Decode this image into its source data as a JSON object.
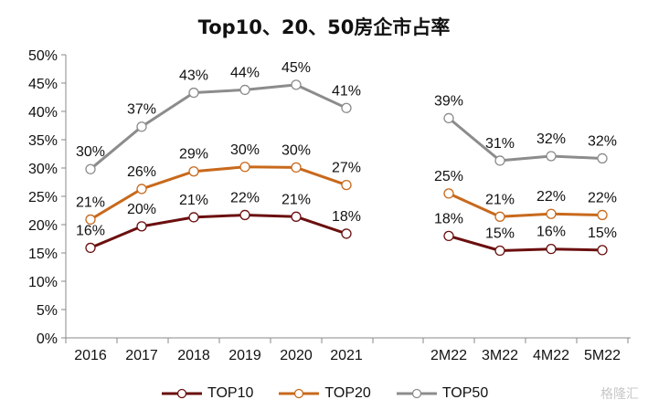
{
  "chart_data": {
    "type": "line",
    "title": "Top10、20、50房企市占率",
    "categories": [
      "2016",
      "2017",
      "2018",
      "2019",
      "2020",
      "2021",
      "2M22",
      "3M22",
      "4M22",
      "5M22"
    ],
    "ylim": [
      0,
      50
    ],
    "yticks": [
      "0%",
      "5%",
      "10%",
      "15%",
      "20%",
      "25%",
      "30%",
      "35%",
      "40%",
      "45%",
      "50%"
    ],
    "series": [
      {
        "name": "TOP10",
        "color": "#6b0f0f",
        "values": [
          15.9,
          19.7,
          21.3,
          21.7,
          21.4,
          18.4,
          18.0,
          15.4,
          15.7,
          15.5
        ],
        "labels": [
          "16%",
          "20%",
          "21%",
          "22%",
          "21%",
          "18%",
          "18%",
          "15%",
          "16%",
          "15%"
        ]
      },
      {
        "name": "TOP20",
        "color": "#c8691c",
        "values": [
          20.9,
          26.3,
          29.4,
          30.2,
          30.1,
          27.0,
          25.5,
          21.4,
          21.9,
          21.7
        ],
        "labels": [
          "21%",
          "26%",
          "29%",
          "30%",
          "30%",
          "27%",
          "25%",
          "21%",
          "22%",
          "22%"
        ]
      },
      {
        "name": "TOP50",
        "color": "#8c8c8c",
        "values": [
          29.8,
          37.3,
          43.3,
          43.8,
          44.7,
          40.6,
          38.8,
          31.3,
          32.1,
          31.7
        ],
        "labels": [
          "30%",
          "37%",
          "43%",
          "44%",
          "45%",
          "41%",
          "39%",
          "31%",
          "32%",
          "32%"
        ]
      }
    ],
    "grid": false,
    "legend_position": "bottom"
  },
  "watermark": "格隆汇"
}
